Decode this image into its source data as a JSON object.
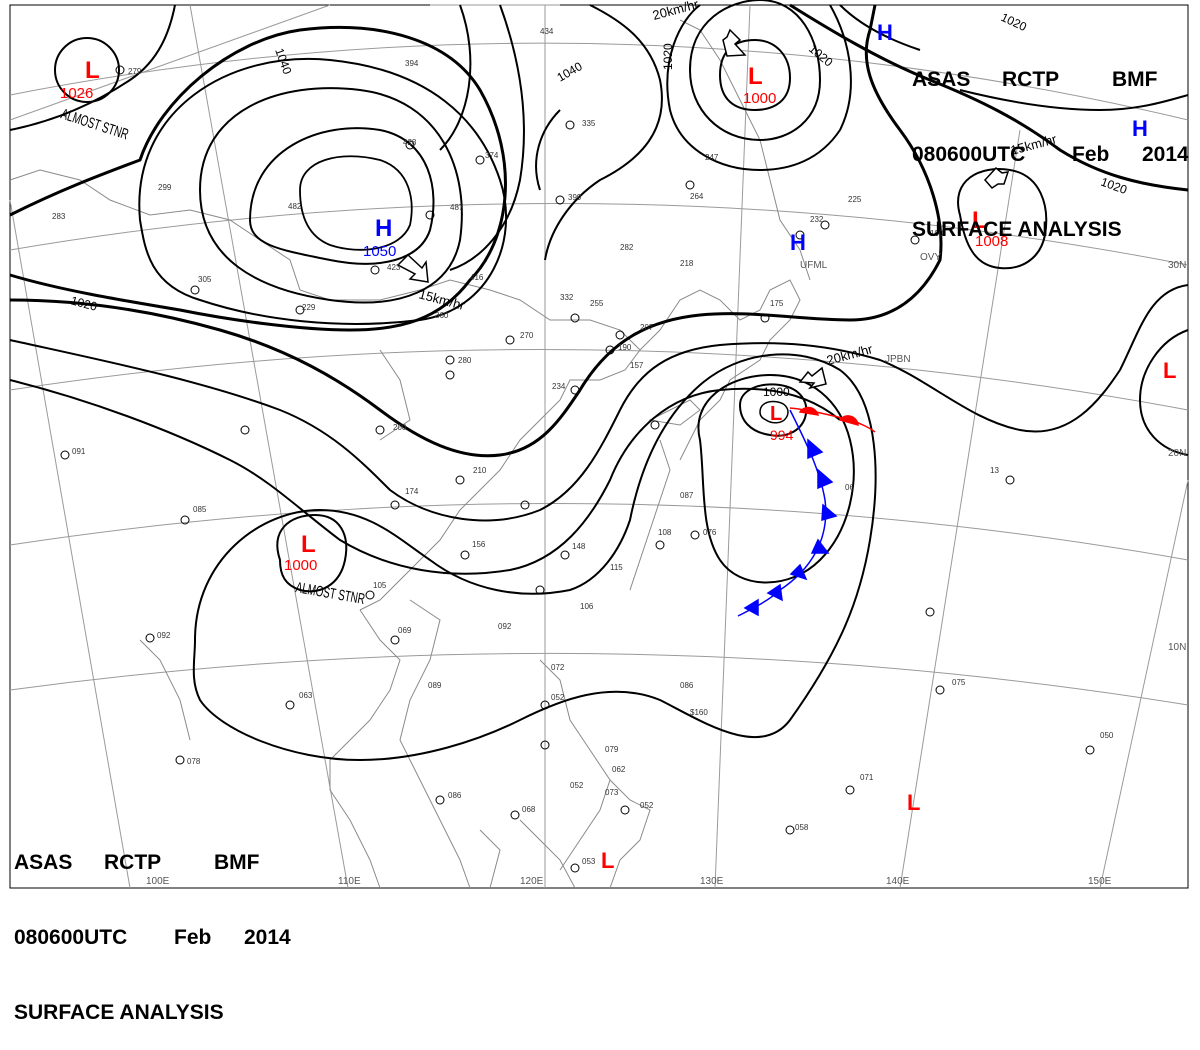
{
  "header": {
    "agency": "ASAS",
    "station": "RCTP",
    "office": "BMF",
    "datetime": "080600UTC",
    "month": "Feb",
    "year": "2014",
    "product": "SURFACE ANALYSIS"
  },
  "colors": {
    "low": "#ff0000",
    "high": "#0000ff",
    "warm_front": "#ff0000",
    "cold_front": "#0000ff",
    "isobar": "#000000",
    "coast": "#888888",
    "grid": "#999999"
  },
  "pressure_systems": [
    {
      "type": "L",
      "value": "1026",
      "note": "ALMOST STNR"
    },
    {
      "type": "H",
      "value": "1050"
    },
    {
      "type": "L",
      "value": "1000"
    },
    {
      "type": "L",
      "value": "1008"
    },
    {
      "type": "L",
      "value": "994"
    },
    {
      "type": "L",
      "value": "1000",
      "note": "ALMOST STNR"
    },
    {
      "type": "H"
    },
    {
      "type": "H"
    },
    {
      "type": "H"
    },
    {
      "type": "L"
    },
    {
      "type": "L"
    },
    {
      "type": "L"
    }
  ],
  "isobar_labels": [
    "1040",
    "1040",
    "1020",
    "1020",
    "1020",
    "1020",
    "1000",
    "1020"
  ],
  "motion_labels": [
    "15km/hr",
    "20km/hr",
    "15km/hr",
    "20km/hr"
  ],
  "longitude_labels": [
    "100E",
    "110E",
    "120E",
    "130E",
    "140E",
    "150E"
  ],
  "latitude_labels": [
    "30N",
    "20N",
    "10N"
  ],
  "station_labels": [
    "UFML",
    "OVY",
    "JPBN"
  ]
}
